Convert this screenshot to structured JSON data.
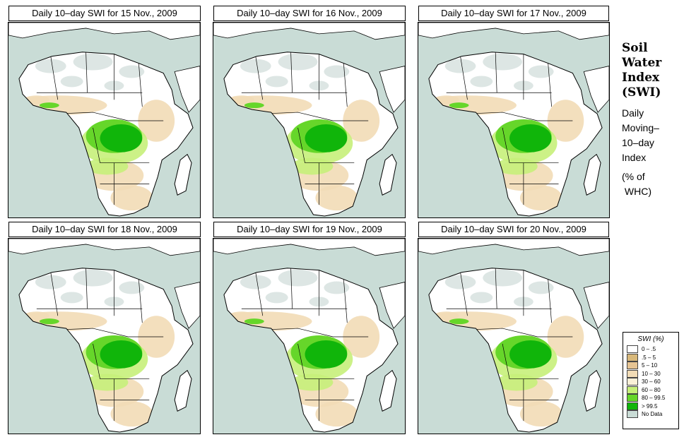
{
  "panels": [
    {
      "title": "Daily 10–day SWI for  15 Nov., 2009"
    },
    {
      "title": "Daily 10–day SWI for  16 Nov., 2009"
    },
    {
      "title": "Daily 10–day SWI for  17 Nov., 2009"
    },
    {
      "title": "Daily 10–day SWI for  18 Nov., 2009"
    },
    {
      "title": "Daily 10–day SWI for  19 Nov., 2009"
    },
    {
      "title": "Daily 10–day SWI for  20 Nov., 2009"
    }
  ],
  "side": {
    "title_lines": [
      "Soil",
      "Water",
      "Index",
      "(SWI)"
    ],
    "subtitle_lines": [
      "Daily",
      "Moving–",
      "10–day",
      "Index"
    ],
    "unit_lines": [
      "(% of",
      " WHC)"
    ]
  },
  "legend": {
    "title": "SWI (%)",
    "items": [
      {
        "label": "0 – .5",
        "color": "#ffffff"
      },
      {
        "label": ".5 – 5",
        "color": "#d8b87a"
      },
      {
        "label": "5 – 10",
        "color": "#e6c493"
      },
      {
        "label": "10 – 30",
        "color": "#f2dcb6"
      },
      {
        "label": "30 – 60",
        "color": "#faf0d8"
      },
      {
        "label": "60 – 80",
        "color": "#c6ef7a"
      },
      {
        "label": "80 – 99.5",
        "color": "#66d62a"
      },
      {
        "label": "> 99.5",
        "color": "#10b50a"
      },
      {
        "label": "No Data",
        "color": "#c9dcd6"
      }
    ]
  },
  "colors": {
    "ocean": "#c9dcd6",
    "land": "#ffffff",
    "dry": "#f2dcb6",
    "desert_nodata": "#d7e2df",
    "wet": "#66d62a",
    "saturated": "#10b50a",
    "moist": "#c6ef7a"
  }
}
